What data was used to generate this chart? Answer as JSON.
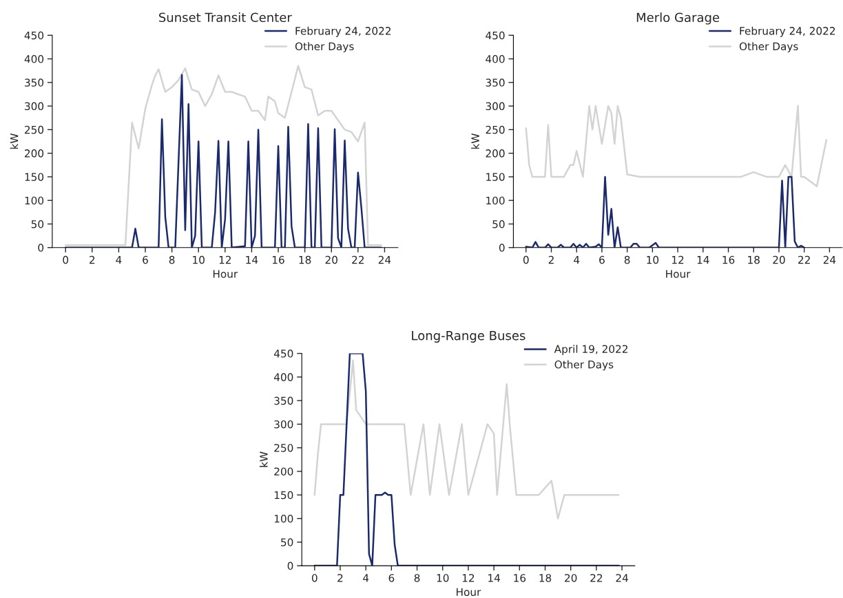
{
  "chart_data": [
    {
      "type": "line",
      "title": "Sunset Transit Center",
      "xlabel": "Hour",
      "ylabel": "kW",
      "xlim": [
        -1,
        25
      ],
      "xticks": [
        0,
        2,
        4,
        6,
        8,
        10,
        12,
        14,
        16,
        18,
        20,
        22,
        24
      ],
      "ylim": [
        0,
        450
      ],
      "yticks": [
        0,
        50,
        100,
        150,
        200,
        250,
        300,
        350,
        400,
        450
      ],
      "legend": "top right",
      "grid": false,
      "series": [
        {
          "name": "Other Days",
          "color": "#d3d3d3",
          "x": [
            0,
            4.5,
            5,
            5.5,
            6,
            6.5,
            6.75,
            7,
            7.5,
            8,
            8.5,
            9,
            9.5,
            10,
            10.5,
            11,
            11.5,
            12,
            12.5,
            13,
            13.5,
            14,
            14.5,
            15,
            15.25,
            15.75,
            16,
            16.5,
            17.5,
            18,
            18.5,
            19,
            19.5,
            20,
            20.5,
            21,
            21.5,
            22,
            22.5,
            22.75,
            23.75
          ],
          "values": [
            5,
            5,
            265,
            210,
            295,
            345,
            365,
            378,
            330,
            340,
            355,
            380,
            335,
            330,
            300,
            325,
            365,
            330,
            330,
            325,
            320,
            290,
            290,
            270,
            320,
            310,
            285,
            275,
            385,
            340,
            335,
            280,
            290,
            290,
            270,
            250,
            245,
            225,
            265,
            5,
            5
          ]
        },
        {
          "name": "February 24, 2022",
          "color": "#1a2a6c",
          "x": [
            0,
            5,
            5.25,
            5.5,
            7,
            7.25,
            7.5,
            7.75,
            8.25,
            8.75,
            9,
            9.25,
            9.5,
            9.75,
            10,
            10.25,
            11,
            11.25,
            11.5,
            11.75,
            12,
            12.25,
            12.5,
            13.5,
            13.75,
            14,
            14.25,
            14.5,
            14.75,
            15.75,
            16,
            16.25,
            16.5,
            16.75,
            17,
            17.25,
            18,
            18.25,
            18.5,
            18.75,
            19,
            19.25,
            20,
            20.25,
            20.5,
            20.75,
            21,
            21.25,
            21.5,
            21.75,
            22,
            22.25,
            22.5,
            23.75
          ],
          "values": [
            0,
            0,
            40,
            0,
            0,
            272,
            65,
            0,
            0,
            366,
            37,
            304,
            0,
            25,
            225,
            0,
            0,
            75,
            226,
            0,
            60,
            225,
            0,
            3,
            225,
            0,
            25,
            250,
            0,
            0,
            215,
            0,
            0,
            256,
            45,
            0,
            0,
            262,
            0,
            0,
            253,
            0,
            0,
            251,
            20,
            0,
            227,
            40,
            0,
            0,
            159,
            85,
            0,
            0
          ]
        }
      ]
    },
    {
      "type": "line",
      "title": "Merlo Garage",
      "xlabel": "Hour",
      "ylabel": "kW",
      "xlim": [
        -1,
        25
      ],
      "xticks": [
        0,
        2,
        4,
        6,
        8,
        10,
        12,
        14,
        16,
        18,
        20,
        22,
        24
      ],
      "ylim": [
        0,
        450
      ],
      "yticks": [
        0,
        50,
        100,
        150,
        200,
        250,
        300,
        350,
        400,
        450
      ],
      "legend": "top right",
      "grid": false,
      "series": [
        {
          "name": "Other Days",
          "color": "#d3d3d3",
          "x": [
            0,
            0.25,
            0.5,
            1,
            1.5,
            1.75,
            2,
            3,
            3.5,
            3.75,
            4,
            4.5,
            5,
            5.25,
            5.5,
            6,
            6.5,
            6.75,
            7,
            7.25,
            7.5,
            8,
            9,
            12,
            14,
            16,
            17,
            18,
            19,
            20,
            20.5,
            21,
            21.5,
            21.75,
            22,
            23,
            23.75
          ],
          "values": [
            253,
            175,
            150,
            150,
            150,
            260,
            150,
            150,
            175,
            175,
            205,
            150,
            300,
            250,
            300,
            220,
            300,
            285,
            220,
            300,
            275,
            155,
            150,
            150,
            150,
            150,
            150,
            160,
            150,
            150,
            175,
            150,
            300,
            150,
            150,
            130,
            228
          ]
        },
        {
          "name": "February 24, 2022",
          "color": "#1a2a6c",
          "x": [
            0,
            0.5,
            0.75,
            1,
            1.5,
            1.75,
            2,
            2.5,
            2.75,
            3,
            3.5,
            3.75,
            4,
            4.25,
            4.5,
            4.75,
            5,
            5.5,
            5.75,
            6,
            6.25,
            6.5,
            6.75,
            7,
            7.25,
            7.5,
            8.25,
            8.5,
            8.75,
            9,
            9.75,
            10.25,
            10.5,
            20,
            20.25,
            20.5,
            20.75,
            21,
            21.25,
            21.5,
            21.75,
            22
          ],
          "values": [
            2,
            0,
            12,
            0,
            0,
            7,
            0,
            0,
            6,
            0,
            0,
            8,
            0,
            6,
            0,
            8,
            0,
            2,
            7,
            0,
            150,
            27,
            82,
            0,
            43,
            0,
            0,
            8,
            8,
            0,
            0,
            10,
            0,
            0,
            142,
            0,
            150,
            150,
            13,
            0,
            4,
            0
          ]
        }
      ]
    },
    {
      "type": "line",
      "title": "Long-Range Buses",
      "xlabel": "Hour",
      "ylabel": "kW",
      "xlim": [
        -1,
        25
      ],
      "xticks": [
        0,
        2,
        4,
        6,
        8,
        10,
        12,
        14,
        16,
        18,
        20,
        22,
        24
      ],
      "ylim": [
        0,
        450
      ],
      "yticks": [
        0,
        50,
        100,
        150,
        200,
        250,
        300,
        350,
        400,
        450
      ],
      "legend": "top right",
      "grid": false,
      "series": [
        {
          "name": "Other Days",
          "color": "#d3d3d3",
          "x": [
            0,
            0.25,
            0.5,
            2.5,
            3,
            3.25,
            4,
            6,
            7,
            7.5,
            8.5,
            9,
            9.75,
            10.5,
            11.5,
            12,
            13.5,
            14,
            14.25,
            15,
            15.25,
            15.75,
            16.75,
            17.5,
            18.5,
            19,
            19.5,
            23.75
          ],
          "values": [
            150,
            235,
            300,
            300,
            435,
            330,
            300,
            300,
            300,
            150,
            300,
            150,
            300,
            150,
            300,
            150,
            300,
            280,
            150,
            385,
            295,
            150,
            150,
            150,
            180,
            100,
            150,
            150
          ]
        },
        {
          "name": "April 19, 2022",
          "color": "#1a2a6c",
          "x": [
            0,
            1.75,
            2,
            2.25,
            2.75,
            3.75,
            4,
            4.25,
            4.5,
            4.75,
            5.25,
            5.5,
            5.75,
            6,
            6.25,
            6.5,
            23.75
          ],
          "values": [
            0,
            0,
            150,
            150,
            450,
            450,
            370,
            25,
            0,
            150,
            150,
            155,
            150,
            150,
            45,
            0,
            0
          ]
        }
      ]
    }
  ]
}
